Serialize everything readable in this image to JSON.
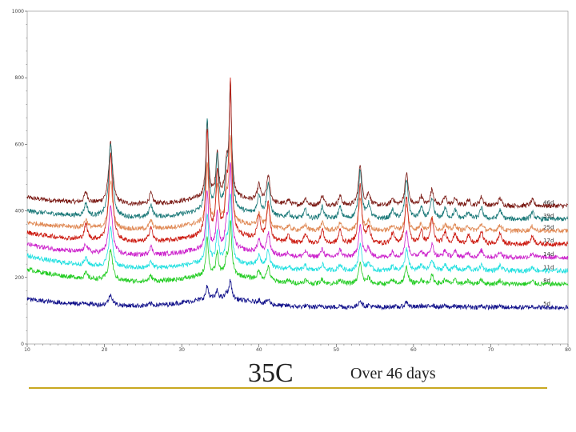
{
  "chart_data": {
    "type": "line",
    "title": "",
    "xlabel": "",
    "ylabel": "",
    "xlim": [
      10,
      80
    ],
    "ylim": [
      0,
      1000
    ],
    "grid": false,
    "x_ticks": [
      10,
      20,
      30,
      40,
      50,
      60,
      70,
      80
    ],
    "x_tick_labels": [
      "10",
      "20",
      "30",
      "40",
      "50",
      "60",
      "70",
      "80"
    ],
    "y_ticks": [
      0,
      200,
      400,
      600,
      800,
      1000
    ],
    "y_tick_labels": [
      "0",
      "200",
      "400",
      "600",
      "800",
      "1000"
    ],
    "peaks": [
      {
        "x": 17.6,
        "h": 45,
        "w": 0.25
      },
      {
        "x": 20.8,
        "h": 260,
        "w": 0.3
      },
      {
        "x": 26.0,
        "h": 45,
        "w": 0.25
      },
      {
        "x": 33.3,
        "h": 320,
        "w": 0.2
      },
      {
        "x": 34.6,
        "h": 190,
        "w": 0.2
      },
      {
        "x": 35.8,
        "h": 120,
        "w": 0.2
      },
      {
        "x": 36.3,
        "h": 450,
        "w": 0.2
      },
      {
        "x": 40.0,
        "h": 70,
        "w": 0.25
      },
      {
        "x": 41.2,
        "h": 115,
        "w": 0.25
      },
      {
        "x": 43.8,
        "h": 20,
        "w": 0.25
      },
      {
        "x": 46.0,
        "h": 30,
        "w": 0.25
      },
      {
        "x": 48.2,
        "h": 42,
        "w": 0.25
      },
      {
        "x": 50.5,
        "h": 40,
        "w": 0.25
      },
      {
        "x": 53.1,
        "h": 175,
        "w": 0.25
      },
      {
        "x": 54.2,
        "h": 50,
        "w": 0.25
      },
      {
        "x": 57.3,
        "h": 30,
        "w": 0.25
      },
      {
        "x": 59.1,
        "h": 140,
        "w": 0.25
      },
      {
        "x": 61.0,
        "h": 38,
        "w": 0.25
      },
      {
        "x": 62.4,
        "h": 70,
        "w": 0.25
      },
      {
        "x": 64.1,
        "h": 36,
        "w": 0.25
      },
      {
        "x": 65.4,
        "h": 30,
        "w": 0.25
      },
      {
        "x": 67.1,
        "h": 25,
        "w": 0.25
      },
      {
        "x": 68.8,
        "h": 38,
        "w": 0.25
      },
      {
        "x": 71.2,
        "h": 32,
        "w": 0.25
      },
      {
        "x": 75.4,
        "h": 24,
        "w": 0.25
      }
    ],
    "series": [
      {
        "name": "46d",
        "offset": 415,
        "start": 440,
        "scale": 0.7,
        "color": "#7a1a14"
      },
      {
        "name": "39d",
        "offset": 375,
        "start": 400,
        "scale": 0.85,
        "color": "#1a7878"
      },
      {
        "name": "25d",
        "offset": 340,
        "start": 365,
        "scale": 0.55,
        "color": "#e08a56"
      },
      {
        "name": "17d",
        "offset": 300,
        "start": 335,
        "scale": 1.0,
        "color": "#cc1a10"
      },
      {
        "name": "14d",
        "offset": 260,
        "start": 300,
        "scale": 0.55,
        "color": "#cc22cc"
      },
      {
        "name": "11d",
        "offset": 220,
        "start": 265,
        "scale": 0.45,
        "color": "#22e0e0"
      },
      {
        "name": "8d",
        "offset": 180,
        "start": 225,
        "scale": 0.35,
        "color": "#22cc22"
      },
      {
        "name": "5d",
        "offset": 110,
        "start": 135,
        "scale": 0.12,
        "color": "#10108a"
      }
    ]
  },
  "caption": {
    "temperature": "35C",
    "duration": "Over 46 days"
  },
  "colors": {
    "rule": "#c8a820",
    "axis": "#444444"
  }
}
